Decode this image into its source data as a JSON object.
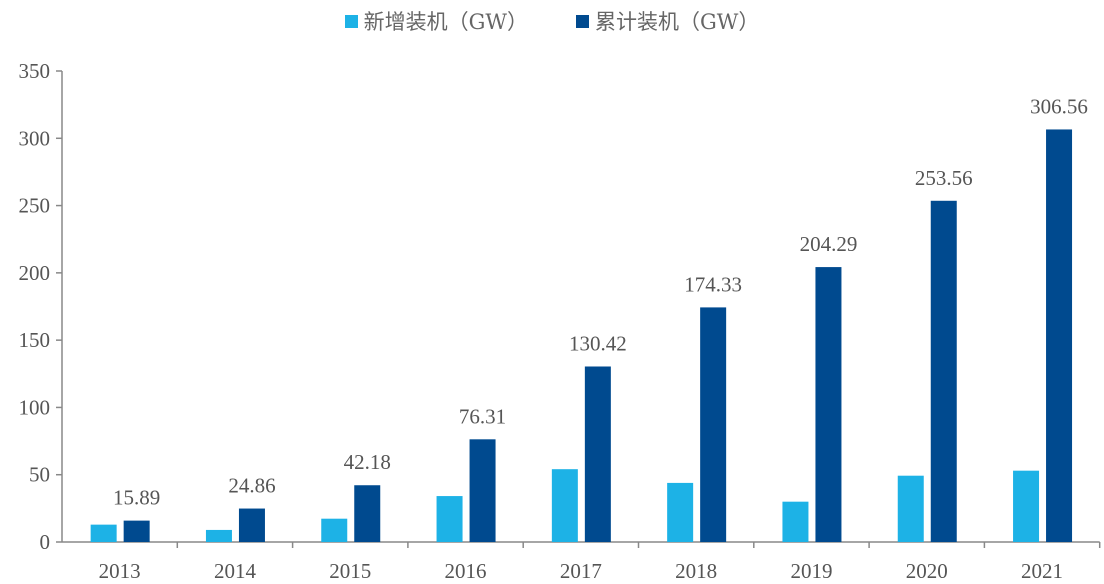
{
  "chart_data": {
    "type": "bar",
    "title": "",
    "xlabel": "",
    "ylabel": "",
    "ylim": [
      0,
      350
    ],
    "yticks": [
      0,
      50,
      100,
      150,
      200,
      250,
      300,
      350
    ],
    "grid": false,
    "legend_placement": "top-center",
    "categories": [
      "2013",
      "2014",
      "2015",
      "2016",
      "2017",
      "2018",
      "2019",
      "2020",
      "2021"
    ],
    "series": [
      {
        "name": "新增装机（GW）",
        "color": "#1db2e6",
        "values": [
          12.9,
          8.97,
          17.32,
          34.13,
          54.11,
          43.91,
          29.96,
          49.27,
          53.0
        ],
        "show_labels": false
      },
      {
        "name": "累计装机（GW）",
        "color": "#004a8f",
        "values": [
          15.89,
          24.86,
          42.18,
          76.31,
          130.42,
          174.33,
          204.29,
          253.56,
          306.56
        ],
        "show_labels": true
      }
    ]
  }
}
